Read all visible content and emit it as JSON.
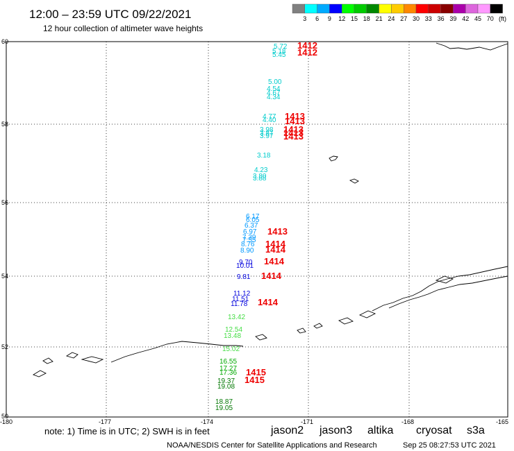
{
  "header": {
    "title": "12:00 – 23:59 UTC 09/22/2021",
    "subtitle": "12 hour collection of altimeter wave heights"
  },
  "color_scale": {
    "unit": "(ft)",
    "labels": [
      "3",
      "6",
      "9",
      "12",
      "15",
      "18",
      "21",
      "24",
      "27",
      "30",
      "33",
      "36",
      "39",
      "42",
      "45",
      "70"
    ],
    "colors": [
      "#808080",
      "#00ffff",
      "#00aaff",
      "#0000ff",
      "#00ff00",
      "#00cc00",
      "#008800",
      "#ffff00",
      "#ffcc00",
      "#ff8800",
      "#ff0000",
      "#cc0000",
      "#880000",
      "#aa00aa",
      "#dd66dd",
      "#ff99ff",
      "#000000"
    ]
  },
  "axes": {
    "lat_labels": [
      "60",
      "58",
      "56",
      "54",
      "52",
      "50"
    ],
    "lon_labels": [
      "-180",
      "-177",
      "-174",
      "-171",
      "-168",
      "-165"
    ]
  },
  "observations": [
    {
      "text": "5.72",
      "color": "#00cccc"
    },
    {
      "text": "5.18",
      "color": "#00cccc"
    },
    {
      "text": "5.45",
      "color": "#00cccc"
    },
    {
      "text": "5.00",
      "color": "#00cccc"
    },
    {
      "text": "4.54",
      "color": "#00cccc"
    },
    {
      "text": "4.67",
      "color": "#00cccc"
    },
    {
      "text": "4.34",
      "color": "#00cccc"
    },
    {
      "text": "4.77",
      "color": "#00cccc"
    },
    {
      "text": "4.40",
      "color": "#00cccc"
    },
    {
      "text": "3.98",
      "color": "#00cccc"
    },
    {
      "text": "3.87",
      "color": "#00cccc"
    },
    {
      "text": "3.97",
      "color": "#00cccc"
    },
    {
      "text": "3.18",
      "color": "#00cccc"
    },
    {
      "text": "4.23",
      "color": "#00cccc"
    },
    {
      "text": "3.80",
      "color": "#00cccc"
    },
    {
      "text": "3.88",
      "color": "#00cccc"
    },
    {
      "text": "6.17",
      "color": "#0099ff"
    },
    {
      "text": "6.05",
      "color": "#0099ff"
    },
    {
      "text": "6.37",
      "color": "#0099ff"
    },
    {
      "text": "6.97",
      "color": "#0099ff"
    },
    {
      "text": "7.39",
      "color": "#0099ff"
    },
    {
      "text": "7.55",
      "color": "#0099ff"
    },
    {
      "text": "8.76",
      "color": "#0099ff"
    },
    {
      "text": "8.90",
      "color": "#0099ff"
    },
    {
      "text": "9.70",
      "color": "#0000dd"
    },
    {
      "text": "10.01",
      "color": "#0000dd"
    },
    {
      "text": "9.81",
      "color": "#0000dd"
    },
    {
      "text": "11.12",
      "color": "#0000dd"
    },
    {
      "text": "11.51",
      "color": "#0000dd"
    },
    {
      "text": "11.78",
      "color": "#0000dd"
    },
    {
      "text": "13.42",
      "color": "#44dd44"
    },
    {
      "text": "12.54",
      "color": "#44dd44"
    },
    {
      "text": "13.48",
      "color": "#44dd44"
    },
    {
      "text": "15.02",
      "color": "#44dd44"
    },
    {
      "text": "16.55",
      "color": "#00aa00"
    },
    {
      "text": "17.27",
      "color": "#00aa00"
    },
    {
      "text": "17.36",
      "color": "#00aa00"
    },
    {
      "text": "19.37",
      "color": "#007700"
    },
    {
      "text": "19.08",
      "color": "#007700"
    },
    {
      "text": "18.87",
      "color": "#007700"
    },
    {
      "text": "19.05",
      "color": "#007700"
    }
  ],
  "revolutions": [
    "1412",
    "1412",
    "1413",
    "1413",
    "1413",
    "1413",
    "1413",
    "1414",
    "1414",
    "1414",
    "1414",
    "1414",
    "1415",
    "1415"
  ],
  "footer": {
    "note": "note:  1) Time is in UTC;  2) SWH is in feet",
    "satellites": [
      {
        "name": "jason2",
        "color": "#0000ff"
      },
      {
        "name": "jason3",
        "color": "#008800"
      },
      {
        "name": "altika",
        "color": "#ff8800"
      },
      {
        "name": "cryosat",
        "color": "#ff0000"
      },
      {
        "name": "s3a",
        "color": "#cc0000"
      }
    ],
    "credit": "NOAA/NESDIS Center for Satellite Applications and Research",
    "timestamp": "Sep 25 08:27:53 UTC 2021"
  }
}
